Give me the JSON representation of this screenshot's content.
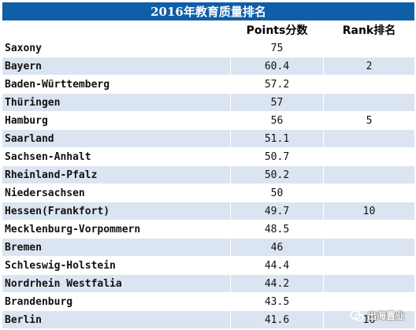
{
  "table": {
    "title": "2016年教育质量排名",
    "columns": [
      "",
      "Points分数",
      "Rank排名"
    ],
    "rows": [
      {
        "state": "Saxony",
        "points": "75",
        "rank": ""
      },
      {
        "state": "Bayern",
        "points": "60.4",
        "rank": "2"
      },
      {
        "state": "Baden-Württemberg",
        "points": "57.2",
        "rank": ""
      },
      {
        "state": "Thüringen",
        "points": "57",
        "rank": ""
      },
      {
        "state": "Hamburg",
        "points": "56",
        "rank": "5"
      },
      {
        "state": "Saarland",
        "points": "51.1",
        "rank": ""
      },
      {
        "state": "Sachsen-Anhalt",
        "points": "50.7",
        "rank": ""
      },
      {
        "state": "Rheinland-Pfalz",
        "points": "50.2",
        "rank": ""
      },
      {
        "state": "Niedersachsen",
        "points": "50",
        "rank": ""
      },
      {
        "state": "Hessen(Frankfort)",
        "points": "49.7",
        "rank": "10"
      },
      {
        "state": "Mecklenburg-Vorpommern",
        "points": "48.5",
        "rank": ""
      },
      {
        "state": "Bremen",
        "points": "46",
        "rank": ""
      },
      {
        "state": "Schleswig-Holstein",
        "points": "44.4",
        "rank": ""
      },
      {
        "state": "Nordrhein Westfalia",
        "points": "44.2",
        "rank": ""
      },
      {
        "state": "Brandenburg",
        "points": "43.5",
        "rank": ""
      },
      {
        "state": "Berlin",
        "points": "41.6",
        "rank": "16"
      }
    ]
  },
  "watermark": {
    "text": "出海置业",
    "icon": "wechat-icon"
  },
  "colors": {
    "header": "#0f5ea8",
    "stripe": "#dbe5f1"
  }
}
